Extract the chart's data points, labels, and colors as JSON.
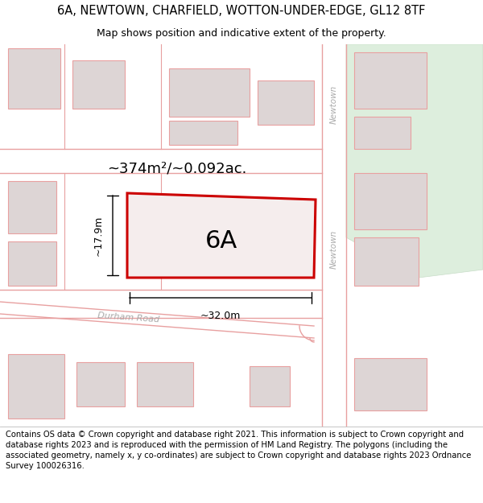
{
  "title": "6A, NEWTOWN, CHARFIELD, WOTTON-UNDER-EDGE, GL12 8TF",
  "subtitle": "Map shows position and indicative extent of the property.",
  "area_label": "~374m²/~0.092ac.",
  "property_label": "6A",
  "width_label": "~32.0m",
  "height_label": "~17.9m",
  "footer": "Contains OS data © Crown copyright and database right 2021. This information is subject to Crown copyright and database rights 2023 and is reproduced with the permission of HM Land Registry. The polygons (including the associated geometry, namely x, y co-ordinates) are subject to Crown copyright and database rights 2023 Ordnance Survey 100026316.",
  "map_bg": "#fdf8f8",
  "road_color": "#e8a0a0",
  "road_line_color": "#e8a0a0",
  "building_fill": "#ddd5d5",
  "building_edge": "#e8a0a0",
  "property_outline_color": "#cc0000",
  "property_fill": "#f5eded",
  "green_fill": "#ddeedd",
  "green_edge": "#c8ddc8",
  "title_fontsize": 10.5,
  "subtitle_fontsize": 9,
  "footer_fontsize": 7.2
}
